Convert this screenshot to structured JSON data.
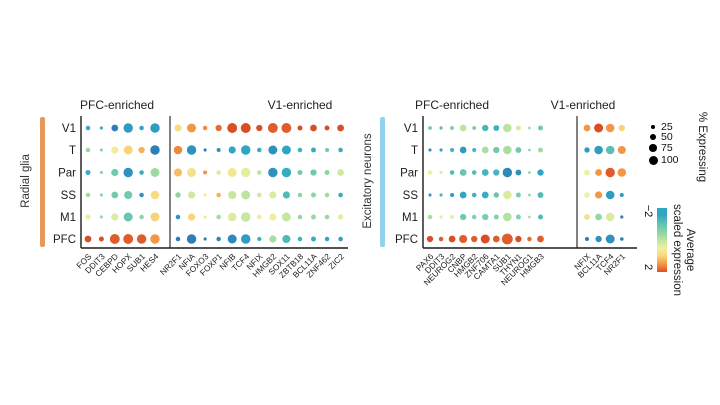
{
  "legend": {
    "pct_title": "% Expressing",
    "pct_values": [
      25,
      50,
      75,
      100
    ],
    "colorbar_min_label": "−2",
    "colorbar_max_label": "2",
    "colorbar_title_line1": "Average",
    "colorbar_title_line2": "scaled expression"
  },
  "chart_data": [
    {
      "type": "dotplot",
      "title": "Radial glia",
      "side_bar_color": "#E8995A",
      "group_labels": [
        "PFC-enriched",
        "V1-enriched"
      ],
      "group_split_index": 6,
      "rows": [
        "V1",
        "T",
        "Par",
        "SS",
        "M1",
        "PFC"
      ],
      "genes": [
        "FOS",
        "DDIT3",
        "CEBPD",
        "HOPX",
        "SUB1",
        "HES4",
        "NR2F1",
        "NFIA",
        "FOXO3",
        "FOXP1",
        "NFIB",
        "TCF4",
        "NFIX",
        "HMGB2",
        "SOX11",
        "ZBTB18",
        "BCL11A",
        "ZNF462",
        "ZIC2"
      ],
      "value_meaning": "average scaled expression (−2 to 2)",
      "size_meaning": "% expressing (0–100)",
      "values": [
        [
          -1.5,
          -1.5,
          -2.0,
          -1.7,
          -1.6,
          -1.7,
          0.9,
          1.5,
          1.6,
          1.8,
          2.0,
          2.0,
          2.0,
          1.9,
          1.9,
          2.0,
          2.0,
          2.0,
          2.0
        ],
        [
          -0.4,
          -0.5,
          0.6,
          1.0,
          1.3,
          -2.0,
          1.6,
          -1.8,
          -2.0,
          -1.8,
          -1.6,
          -1.6,
          -1.5,
          -1.8,
          -1.6,
          -1.4,
          -1.5,
          -0.8,
          -1.5
        ],
        [
          -1.5,
          -0.5,
          -0.8,
          -1.8,
          -1.5,
          -0.3,
          1.2,
          0.8,
          1.5,
          0.3,
          0.7,
          0.4,
          0.0,
          -1.8,
          -1.5,
          -0.8,
          -0.8,
          -0.5,
          0.2
        ],
        [
          -0.3,
          -0.5,
          -0.8,
          -0.8,
          -1.8,
          0.9,
          -0.5,
          0.2,
          0.5,
          1.3,
          0.1,
          0.0,
          0.2,
          0.3,
          -1.2,
          -0.5,
          -0.5,
          -0.3,
          -1.5
        ],
        [
          0.4,
          -0.3,
          0.3,
          -0.9,
          -0.5,
          1.0,
          -1.8,
          1.0,
          0.6,
          -0.3,
          0.3,
          0.1,
          0.6,
          0.5,
          0.1,
          -0.4,
          -0.4,
          -0.4,
          0.4
        ],
        [
          2.0,
          2.0,
          1.9,
          1.9,
          1.9,
          1.5,
          -2.0,
          -2.0,
          -2.0,
          -1.9,
          -1.9,
          -1.7,
          -1.5,
          -0.2,
          -1.2,
          -1.4,
          -1.5,
          -1.6,
          -1.7
        ]
      ],
      "pct": [
        [
          30,
          15,
          55,
          85,
          30,
          85,
          60,
          80,
          30,
          50,
          90,
          90,
          50,
          90,
          90,
          35,
          55,
          35,
          55
        ],
        [
          30,
          15,
          60,
          80,
          50,
          85,
          75,
          85,
          15,
          25,
          60,
          85,
          30,
          80,
          80,
          30,
          35,
          25,
          30
        ],
        [
          35,
          15,
          60,
          85,
          30,
          80,
          70,
          80,
          25,
          30,
          80,
          85,
          30,
          85,
          85,
          35,
          50,
          35,
          55
        ],
        [
          30,
          15,
          55,
          70,
          30,
          75,
          40,
          60,
          15,
          30,
          70,
          80,
          30,
          60,
          60,
          30,
          35,
          30,
          30
        ],
        [
          35,
          15,
          60,
          80,
          30,
          80,
          30,
          60,
          15,
          30,
          75,
          85,
          30,
          60,
          80,
          30,
          35,
          30,
          40
        ],
        [
          55,
          35,
          90,
          90,
          85,
          85,
          30,
          85,
          15,
          30,
          80,
          85,
          25,
          60,
          70,
          30,
          35,
          30,
          30
        ]
      ]
    },
    {
      "type": "dotplot",
      "title": "Excitatory neurons",
      "side_bar_color": "#92D2EE",
      "group_labels": [
        "PFC-enriched",
        "V1-enriched"
      ],
      "group_split_index": 11,
      "rows": [
        "V1",
        "T",
        "Par",
        "SS",
        "M1",
        "PFC"
      ],
      "genes": [
        "PAX6",
        "DDIT3",
        "NEUROG2",
        "CNBP",
        "HMGB2",
        "ZNF706",
        "CAMTA1",
        "SUB1",
        "THYN1",
        "NEUROG1",
        "HMGB3",
        "NFIX",
        "BCL11A",
        "TCF4",
        "NR2F1"
      ],
      "value_meaning": "average scaled expression (−2 to 2)",
      "size_meaning": "% expressing (0–100)",
      "values": [
        [
          -0.6,
          -1.2,
          -0.6,
          0.0,
          -0.6,
          -1.3,
          -1.4,
          0.0,
          0.3,
          -0.3,
          -0.8,
          1.5,
          2.0,
          1.5,
          1.0
        ],
        [
          -1.8,
          -1.6,
          -1.4,
          -1.7,
          -1.3,
          -0.2,
          -0.8,
          -0.2,
          -0.8,
          -0.5,
          -0.3,
          -1.7,
          -1.7,
          -1.1,
          1.5
        ],
        [
          0.5,
          0.4,
          -1.2,
          -0.9,
          -1.2,
          -1.3,
          -1.3,
          -1.9,
          -1.8,
          -0.5,
          -1.6,
          0.5,
          1.5,
          1.9,
          1.5
        ],
        [
          -1.7,
          -1.3,
          -1.7,
          -1.6,
          -1.4,
          -1.5,
          -0.9,
          0.3,
          -0.7,
          -0.5,
          -1.2,
          0.5,
          1.5,
          -1.7,
          -1.7
        ],
        [
          -0.2,
          0.4,
          0.4,
          -0.8,
          -0.6,
          -0.7,
          -0.6,
          -0.1,
          -0.6,
          -0.3,
          -1.2,
          0.8,
          -0.4,
          0.3,
          -2.0
        ],
        [
          2.0,
          1.9,
          2.0,
          1.9,
          1.9,
          2.0,
          1.9,
          1.9,
          2.0,
          1.8,
          1.9,
          -2.0,
          -1.8,
          -1.8,
          -2.0
        ]
      ],
      "pct": [
        [
          25,
          15,
          25,
          55,
          25,
          50,
          45,
          75,
          35,
          10,
          35,
          55,
          80,
          75,
          50
        ],
        [
          15,
          15,
          25,
          55,
          25,
          55,
          50,
          75,
          45,
          10,
          35,
          40,
          75,
          75,
          70
        ],
        [
          30,
          15,
          30,
          55,
          30,
          55,
          50,
          85,
          45,
          10,
          50,
          45,
          55,
          85,
          75
        ],
        [
          15,
          15,
          25,
          55,
          30,
          55,
          40,
          75,
          35,
          10,
          45,
          40,
          60,
          75,
          25
        ],
        [
          30,
          15,
          25,
          50,
          30,
          50,
          35,
          75,
          35,
          10,
          35,
          45,
          55,
          75,
          15
        ],
        [
          50,
          30,
          55,
          70,
          50,
          80,
          55,
          100,
          50,
          30,
          55,
          25,
          50,
          80,
          20
        ]
      ]
    }
  ]
}
